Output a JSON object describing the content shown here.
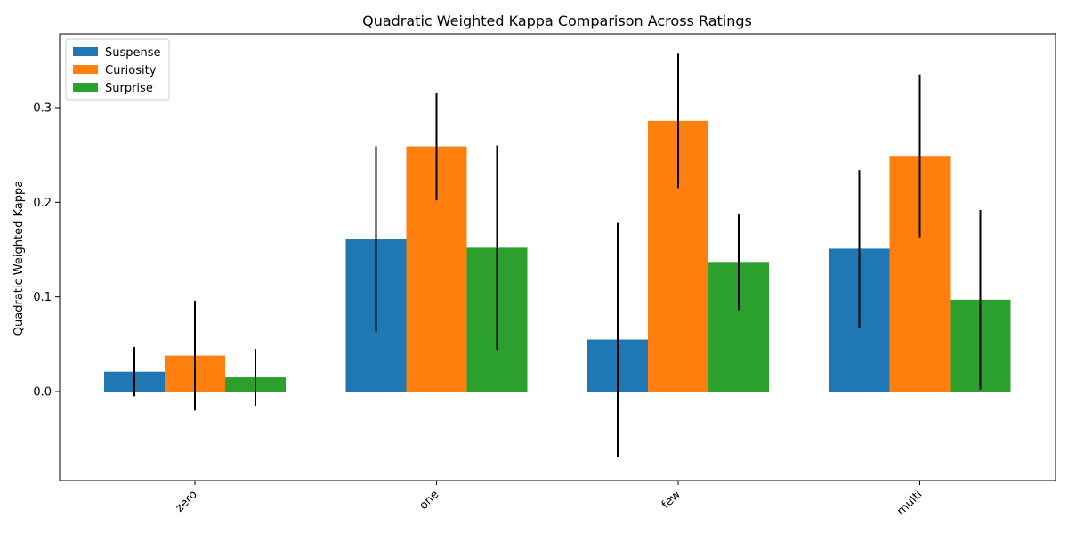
{
  "chart_data": {
    "type": "bar",
    "title": "Quadratic Weighted Kappa Comparison Across Ratings",
    "xlabel": "",
    "ylabel": "Quadratic Weighted Kappa",
    "categories": [
      "zero",
      "one",
      "few",
      "multi"
    ],
    "series": [
      {
        "name": "Suspense",
        "color": "#1f77b4",
        "values": [
          0.021,
          0.161,
          0.055,
          0.151
        ],
        "errors": [
          0.026,
          0.098,
          0.124,
          0.083
        ]
      },
      {
        "name": "Curiosity",
        "color": "#ff7f0e",
        "values": [
          0.038,
          0.259,
          0.286,
          0.249
        ],
        "errors": [
          0.058,
          0.057,
          0.071,
          0.086
        ]
      },
      {
        "name": "Surprise",
        "color": "#2ca02c",
        "values": [
          0.015,
          0.152,
          0.137,
          0.097
        ],
        "errors": [
          0.03,
          0.108,
          0.051,
          0.095
        ]
      }
    ],
    "ylim": [
      -0.094,
      0.378
    ],
    "yticks": [
      0.0,
      0.1,
      0.2,
      0.3
    ],
    "ytick_labels": [
      "0.0",
      "0.1",
      "0.2",
      "0.3"
    ],
    "grid": false,
    "legend_position": "top-left"
  }
}
